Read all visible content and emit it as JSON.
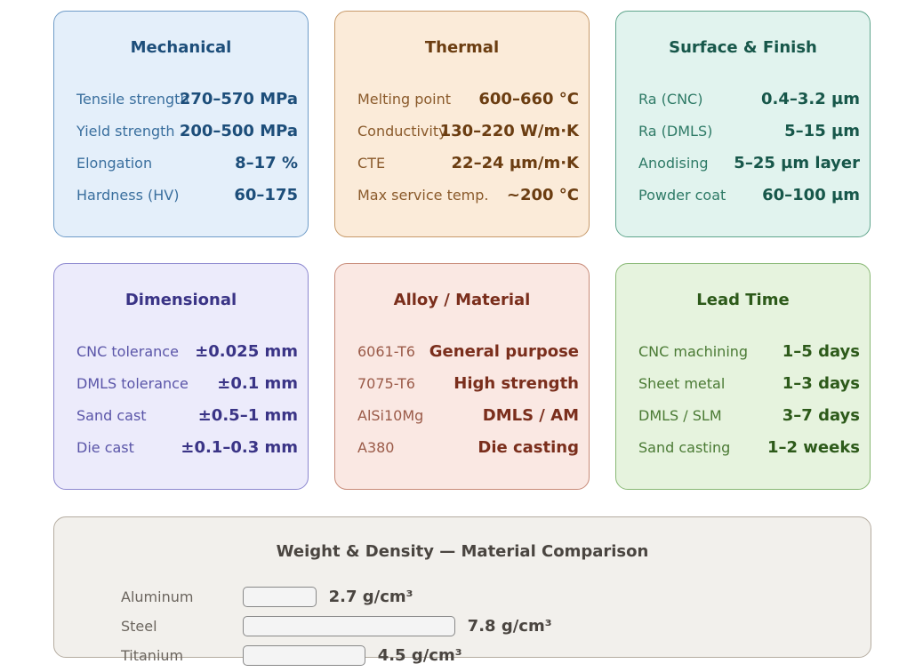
{
  "cards": [
    {
      "title": "Mechanical",
      "rows": [
        [
          "Tensile strength",
          "270–570 MPa"
        ],
        [
          "Yield strength",
          "200–500 MPa"
        ],
        [
          "Elongation",
          "8–17 %"
        ],
        [
          "Hardness (HV)",
          "60–175"
        ]
      ]
    },
    {
      "title": "Thermal",
      "rows": [
        [
          "Melting point",
          "600–660 °C"
        ],
        [
          "Conductivity",
          "130–220 W/m·K"
        ],
        [
          "CTE",
          "22–24 µm/m·K"
        ],
        [
          "Max service temp.",
          "~200 °C"
        ]
      ]
    },
    {
      "title": "Surface & Finish",
      "rows": [
        [
          "Ra (CNC)",
          "0.4–3.2 µm"
        ],
        [
          "Ra (DMLS)",
          "5–15 µm"
        ],
        [
          "Anodising",
          "5–25 µm layer"
        ],
        [
          "Powder coat",
          "60–100 µm"
        ]
      ]
    },
    {
      "title": "Dimensional",
      "rows": [
        [
          "CNC tolerance",
          "±0.025 mm"
        ],
        [
          "DMLS tolerance",
          "±0.1 mm"
        ],
        [
          "Sand cast",
          "±0.5–1 mm"
        ],
        [
          "Die cast",
          "±0.1–0.3 mm"
        ]
      ]
    },
    {
      "title": "Alloy / Material",
      "rows": [
        [
          "6061-T6",
          "General purpose"
        ],
        [
          "7075-T6",
          "High strength"
        ],
        [
          "AlSi10Mg",
          "DMLS / AM"
        ],
        [
          "A380",
          "Die casting"
        ]
      ]
    },
    {
      "title": "Lead Time",
      "rows": [
        [
          "CNC machining",
          "1–5 days"
        ],
        [
          "Sheet metal",
          "1–3 days"
        ],
        [
          "DMLS / SLM",
          "3–7 days"
        ],
        [
          "Sand casting",
          "1–2 weeks"
        ]
      ]
    }
  ],
  "comparison": {
    "title": "Weight & Density — Material Comparison",
    "categories": [
      "Aluminum",
      "Steel",
      "Titanium"
    ],
    "values": [
      2.7,
      7.8,
      4.5
    ],
    "value_labels": [
      "2.7 g/cm³",
      "7.8 g/cm³",
      "4.5 g/cm³"
    ]
  }
}
